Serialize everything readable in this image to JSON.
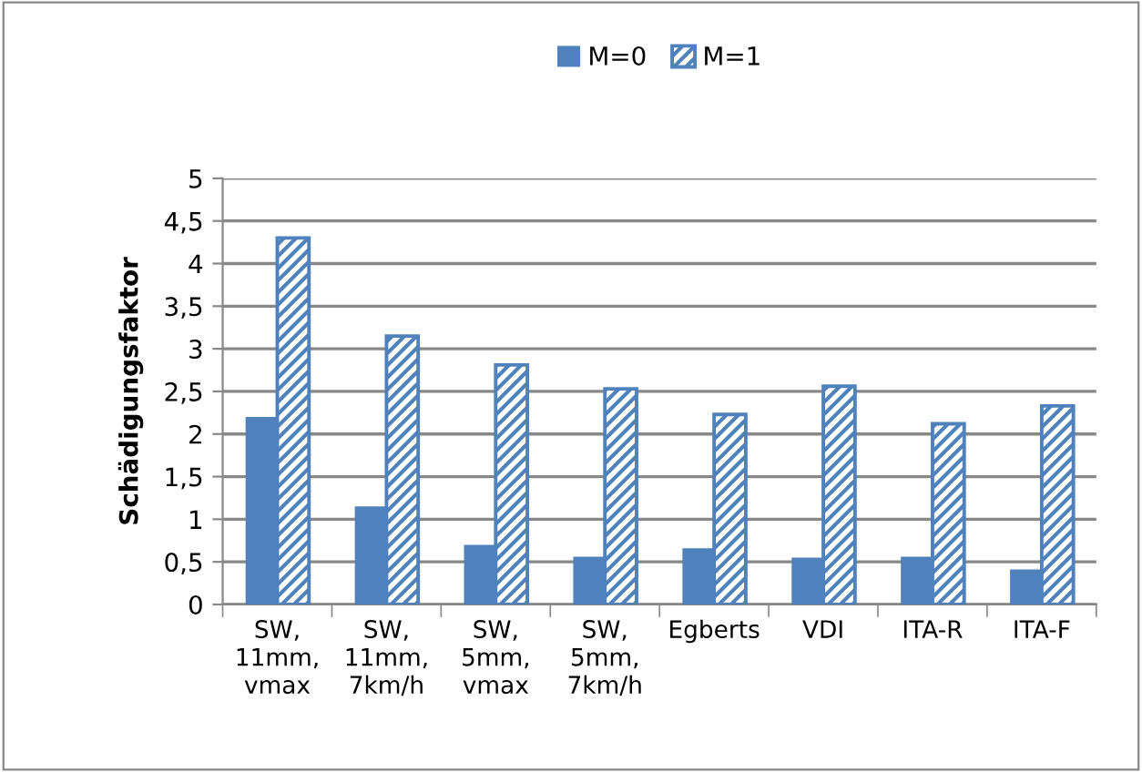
{
  "chart_data": {
    "type": "bar",
    "ylabel": "Schädigungsfaktor",
    "categories": [
      "SW,\n11mm,\nvmax",
      "SW,\n11mm,\n7km/h",
      "SW,\n5mm,\nvmax",
      "SW,\n5mm,\n7km/h",
      "Egberts",
      "VDI",
      "ITA-R",
      "ITA-F"
    ],
    "series": [
      {
        "name": "M=0",
        "color": "#4f81bd",
        "values": [
          2.2,
          1.15,
          0.7,
          0.56,
          0.66,
          0.55,
          0.56,
          0.41
        ]
      },
      {
        "name": "M=1",
        "color": "#4f81bd",
        "values": [
          4.3,
          3.15,
          2.81,
          2.53,
          2.23,
          2.56,
          2.12,
          2.33
        ]
      }
    ],
    "ylim": [
      0,
      5
    ],
    "yticks": [
      {
        "value": 0,
        "label": "0"
      },
      {
        "value": 0.5,
        "label": "0,5"
      },
      {
        "value": 1,
        "label": "1"
      },
      {
        "value": 1.5,
        "label": "1,5"
      },
      {
        "value": 2,
        "label": "2"
      },
      {
        "value": 2.5,
        "label": "2,5"
      },
      {
        "value": 3,
        "label": "3"
      },
      {
        "value": 3.5,
        "label": "3,5"
      },
      {
        "value": 4,
        "label": "4"
      },
      {
        "value": 4.5,
        "label": "4,5"
      },
      {
        "value": 5,
        "label": "5"
      }
    ],
    "grid": "y",
    "legend": "top"
  }
}
